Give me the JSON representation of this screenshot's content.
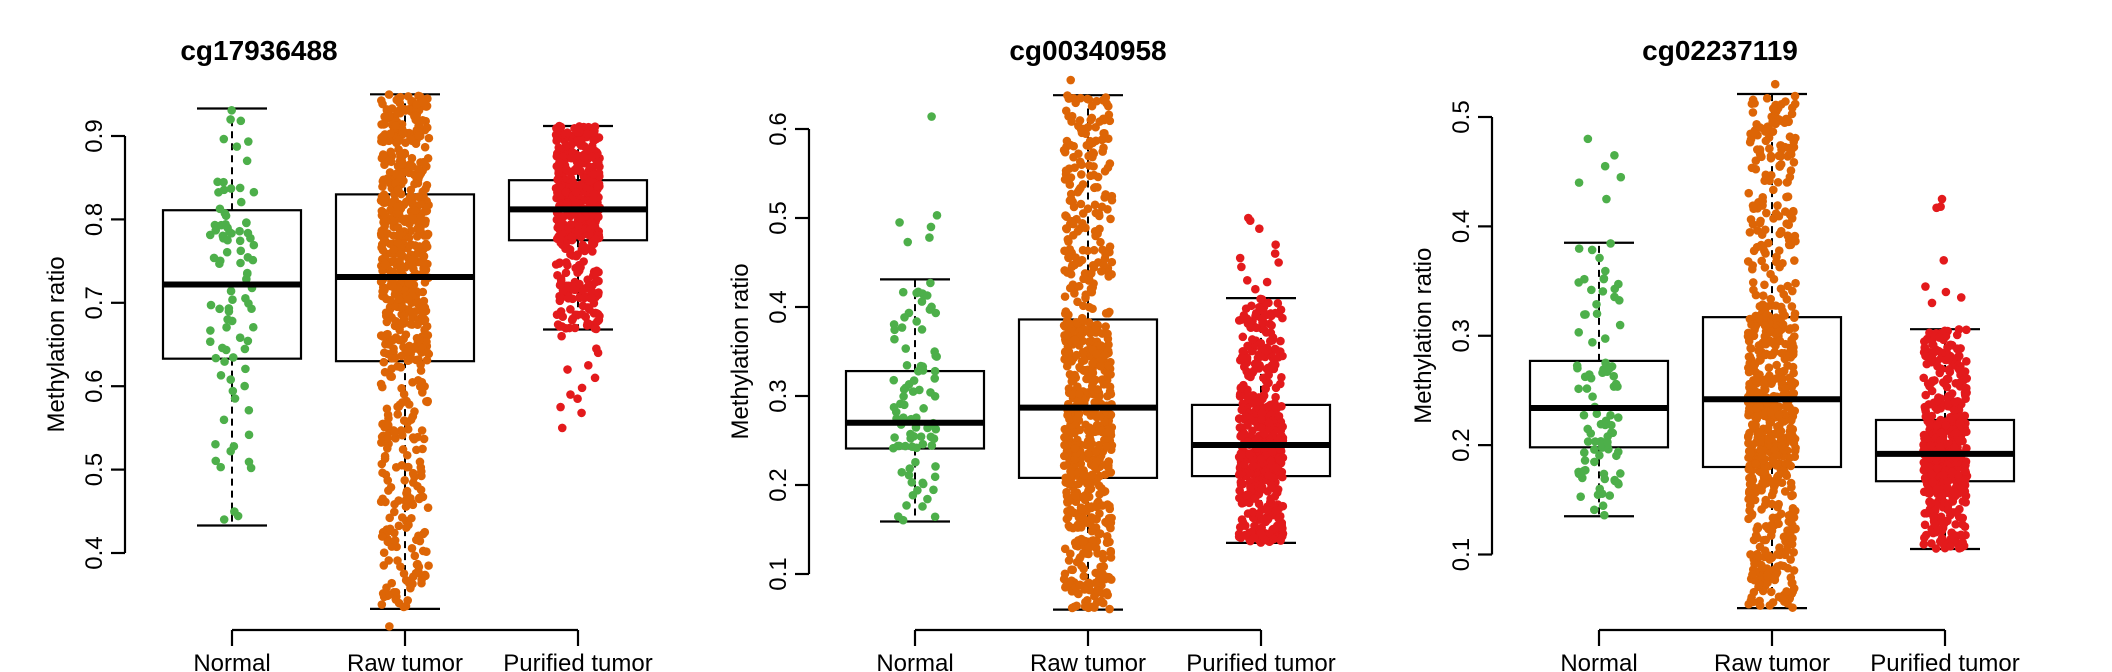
{
  "chart_data": [
    {
      "type": "boxplot",
      "title": "cg17936488",
      "ylabel": "Methylation ratio",
      "ylim": [
        0.3,
        0.96
      ],
      "yticks": [
        "0.4",
        "0.5",
        "0.6",
        "0.7",
        "0.8",
        "0.9"
      ],
      "categories": [
        "Normal",
        "Raw tumor",
        "Purified tumor"
      ],
      "series": [
        {
          "group": "Normal",
          "color": "#4DAF4A",
          "whisker_low": 0.433,
          "q1": 0.633,
          "median": 0.722,
          "q3": 0.811,
          "whisker_high": 0.933,
          "outliers": []
        },
        {
          "group": "Raw tumor",
          "color": "#DD6506",
          "whisker_low": 0.333,
          "q1": 0.63,
          "median": 0.731,
          "q3": 0.83,
          "whisker_high": 0.95,
          "outliers": [
            0.312
          ]
        },
        {
          "group": "Purified tumor",
          "color": "#E31A1C",
          "whisker_low": 0.668,
          "q1": 0.775,
          "median": 0.812,
          "q3": 0.847,
          "whisker_high": 0.912,
          "outliers": [
            0.55,
            0.568,
            0.575,
            0.585,
            0.59,
            0.598,
            0.61,
            0.62,
            0.625,
            0.64,
            0.645,
            0.66
          ]
        }
      ]
    },
    {
      "type": "boxplot",
      "title": "cg00340958",
      "ylabel": "Methylation ratio",
      "ylim": [
        0.05,
        0.66
      ],
      "yticks": [
        "0.1",
        "0.2",
        "0.3",
        "0.4",
        "0.5",
        "0.6"
      ],
      "categories": [
        "Normal",
        "Raw tumor",
        "Purified tumor"
      ],
      "series": [
        {
          "group": "Normal",
          "color": "#4DAF4A",
          "whisker_low": 0.159,
          "q1": 0.241,
          "median": 0.27,
          "q3": 0.328,
          "whisker_high": 0.431,
          "outliers": [
            0.614,
            0.503,
            0.495,
            0.49,
            0.478,
            0.473
          ]
        },
        {
          "group": "Raw tumor",
          "color": "#DD6506",
          "whisker_low": 0.06,
          "q1": 0.208,
          "median": 0.287,
          "q3": 0.386,
          "whisker_high": 0.638,
          "outliers": [
            0.655
          ]
        },
        {
          "group": "Purified tumor",
          "color": "#E31A1C",
          "whisker_low": 0.135,
          "q1": 0.21,
          "median": 0.245,
          "q3": 0.29,
          "whisker_high": 0.41,
          "outliers": [
            0.5,
            0.497,
            0.488,
            0.47,
            0.46,
            0.455,
            0.45,
            0.445,
            0.43,
            0.428,
            0.42
          ]
        }
      ]
    },
    {
      "type": "boxplot",
      "title": "cg02237119",
      "ylabel": "Methylation ratio",
      "ylim": [
        0.04,
        0.53
      ],
      "yticks": [
        "0.1",
        "0.2",
        "0.3",
        "0.4",
        "0.5"
      ],
      "categories": [
        "Normal",
        "Raw tumor",
        "Purified tumor"
      ],
      "series": [
        {
          "group": "Normal",
          "color": "#4DAF4A",
          "whisker_low": 0.135,
          "q1": 0.198,
          "median": 0.234,
          "q3": 0.277,
          "whisker_high": 0.385,
          "outliers": [
            0.48,
            0.465,
            0.455,
            0.445,
            0.44,
            0.425
          ]
        },
        {
          "group": "Raw tumor",
          "color": "#DD6506",
          "whisker_low": 0.051,
          "q1": 0.18,
          "median": 0.242,
          "q3": 0.317,
          "whisker_high": 0.521,
          "outliers": [
            0.53
          ]
        },
        {
          "group": "Purified tumor",
          "color": "#E31A1C",
          "whisker_low": 0.105,
          "q1": 0.167,
          "median": 0.192,
          "q3": 0.223,
          "whisker_high": 0.306,
          "outliers": [
            0.425,
            0.418,
            0.417,
            0.369,
            0.345,
            0.34,
            0.335,
            0.33
          ]
        }
      ]
    }
  ]
}
